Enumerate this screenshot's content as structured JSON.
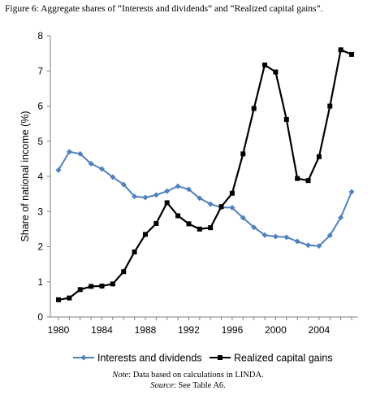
{
  "figure": {
    "caption": "Figure 6: Aggregate shares of “Interests and dividends” and “Realized capital gains”.",
    "note_label": "Note",
    "note_text": ": Data based on calculations in LINDA.",
    "source_label": "Source",
    "source_text": ": See Table A6."
  },
  "chart_data": {
    "type": "line",
    "title": "",
    "xlabel": "",
    "ylabel": "Share of national income (%)",
    "xlim": [
      1980,
      2007
    ],
    "ylim": [
      0,
      8
    ],
    "xticks": [
      1980,
      1984,
      1988,
      1992,
      1996,
      2000,
      2004
    ],
    "yticks": [
      0,
      1,
      2,
      3,
      4,
      5,
      6,
      7,
      8
    ],
    "grid": false,
    "legend": "bottom",
    "series": [
      {
        "name": "Interests and dividends",
        "color": "#4f81bd",
        "marker": "diamond",
        "x": [
          1980,
          1981,
          1982,
          1983,
          1984,
          1985,
          1986,
          1987,
          1988,
          1989,
          1990,
          1991,
          1992,
          1993,
          1994,
          1995,
          1996,
          1997,
          1998,
          1999,
          2000,
          2001,
          2002,
          2003,
          2004,
          2005,
          2006,
          2007
        ],
        "y": [
          4.18,
          4.7,
          4.64,
          4.36,
          4.21,
          3.98,
          3.77,
          3.43,
          3.4,
          3.47,
          3.58,
          3.72,
          3.63,
          3.38,
          3.21,
          3.12,
          3.11,
          2.82,
          2.55,
          2.33,
          2.29,
          2.27,
          2.15,
          2.04,
          2.02,
          2.32,
          2.83,
          3.56
        ]
      },
      {
        "name": "Realized capital gains",
        "color": "#000000",
        "marker": "square",
        "x": [
          1980,
          1981,
          1982,
          1983,
          1984,
          1985,
          1986,
          1987,
          1988,
          1989,
          1990,
          1991,
          1992,
          1993,
          1994,
          1995,
          1996,
          1997,
          1998,
          1999,
          2000,
          2001,
          2002,
          2003,
          2004,
          2005,
          2006,
          2007
        ],
        "y": [
          0.49,
          0.54,
          0.78,
          0.87,
          0.88,
          0.94,
          1.29,
          1.85,
          2.35,
          2.66,
          3.25,
          2.88,
          2.65,
          2.5,
          2.54,
          3.14,
          3.52,
          4.64,
          5.93,
          7.17,
          6.97,
          5.62,
          3.94,
          3.88,
          4.56,
          6.0,
          7.6,
          7.47
        ]
      }
    ]
  }
}
